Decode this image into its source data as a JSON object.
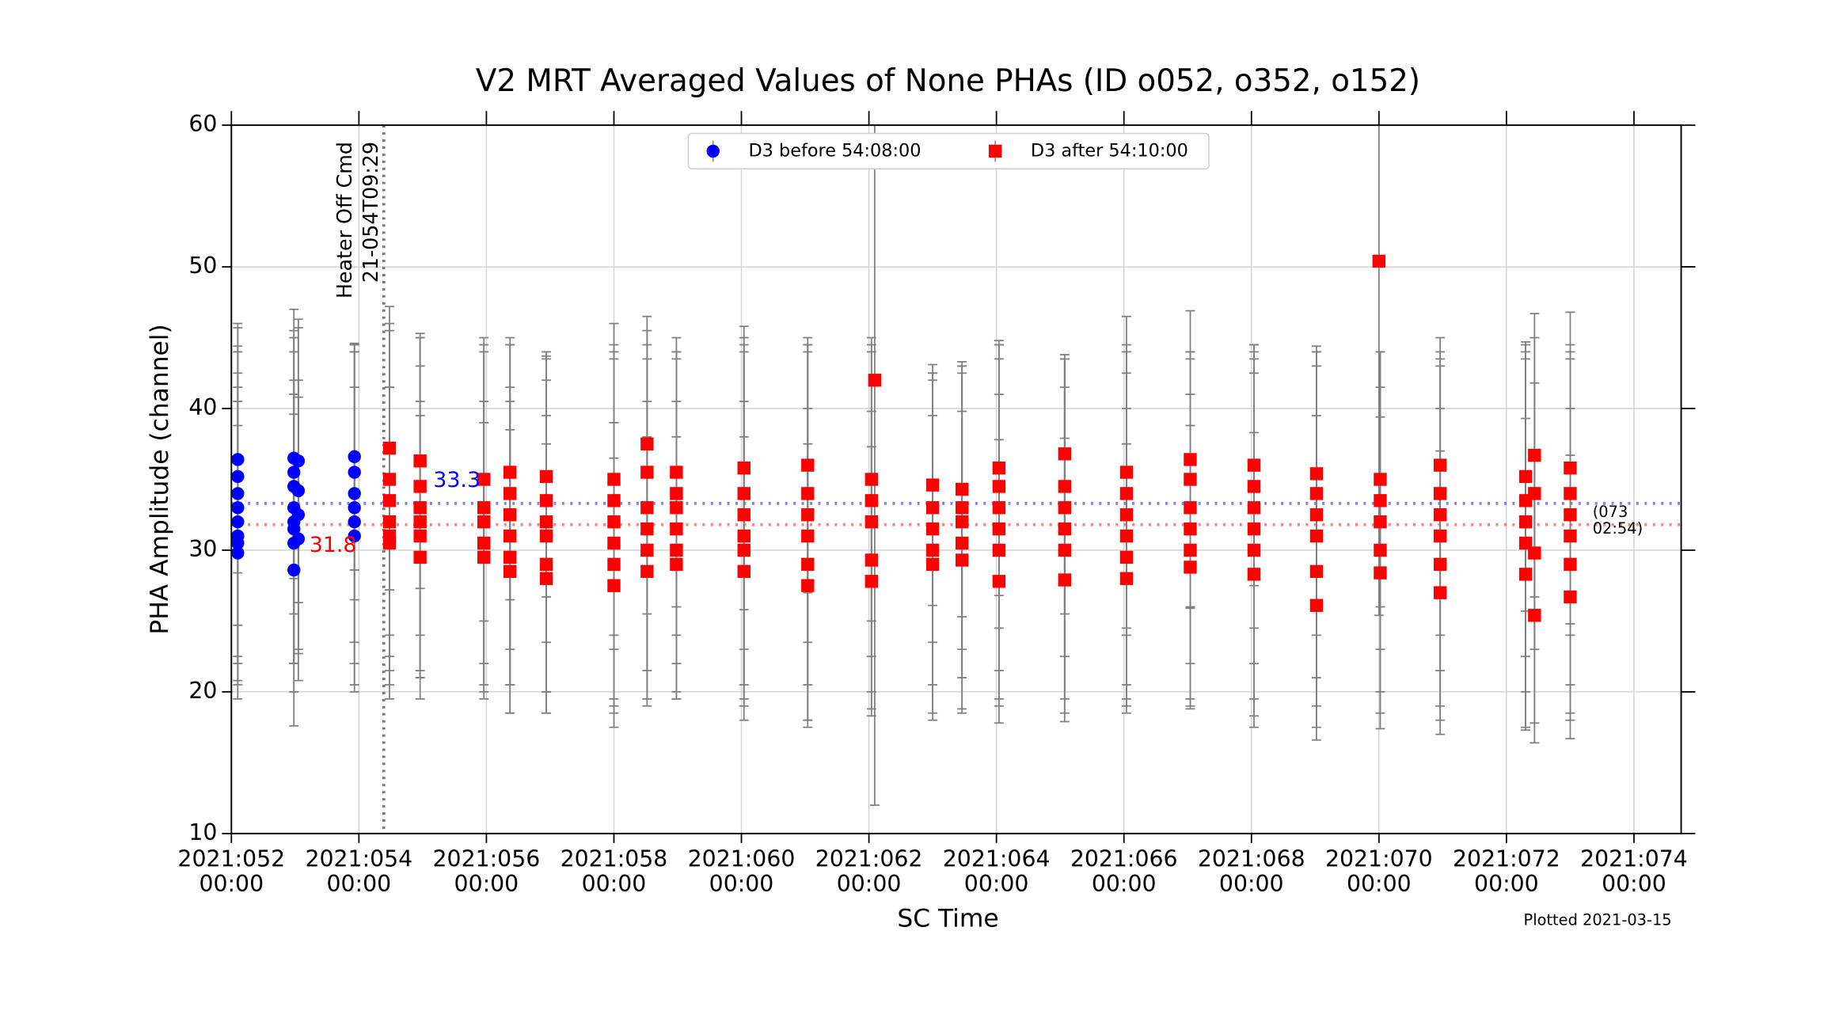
{
  "chart_data": {
    "type": "scatter",
    "title": "V2 MRT Averaged Values of None PHAs (ID o052, o352, o152)",
    "x_label": "SC Time",
    "y_label": "PHA Amplitude (channel)",
    "footnote": "Plotted 2021-03-15",
    "xlim": [
      52,
      74.74
    ],
    "ylim": [
      10,
      60
    ],
    "xticks": [
      {
        "value": 52,
        "label": "2021:052\n00:00"
      },
      {
        "value": 54,
        "label": "2021:054\n00:00"
      },
      {
        "value": 56,
        "label": "2021:056\n00:00"
      },
      {
        "value": 58,
        "label": "2021:058\n00:00"
      },
      {
        "value": 60,
        "label": "2021:060\n00:00"
      },
      {
        "value": 62,
        "label": "2021:062\n00:00"
      },
      {
        "value": 64,
        "label": "2021:064\n00:00"
      },
      {
        "value": 66,
        "label": "2021:066\n00:00"
      },
      {
        "value": 68,
        "label": "2021:068\n00:00"
      },
      {
        "value": 70,
        "label": "2021:070\n00:00"
      },
      {
        "value": 72,
        "label": "2021:072\n00:00"
      },
      {
        "value": 74,
        "label": "2021:074\n00:00"
      }
    ],
    "yticks": [
      10,
      20,
      30,
      40,
      50,
      60
    ],
    "grid": true,
    "legend": "upper center",
    "error_color": "#808080",
    "series": [
      {
        "name": "D3 before 54:08:00",
        "color": "#0000ff",
        "marker": "circle",
        "x": [
          52.1,
          52.1,
          52.1,
          52.1,
          52.1,
          52.1,
          52.1,
          52.1,
          52.98,
          52.98,
          52.98,
          52.98,
          52.98,
          52.98,
          52.98,
          52.98,
          53.05,
          53.05,
          53.05,
          53.05,
          53.93,
          53.93,
          53.93,
          53.93,
          53.93,
          53.93
        ],
        "values": [
          36.4,
          35.2,
          34,
          33,
          32,
          31,
          30.5,
          29.8,
          36.5,
          35.5,
          34.5,
          33,
          32,
          31.5,
          30.5,
          28.6,
          36.3,
          34.2,
          32.5,
          30.8,
          36.6,
          35.5,
          34,
          33,
          32,
          31
        ],
        "errors": [
          8,
          10.5,
          12,
          11,
          9.5,
          11.5,
          10,
          9,
          8.5,
          10,
          12.5,
          11,
          10,
          9.5,
          10.5,
          11,
          10,
          11.5,
          9.5,
          10,
          8,
          9,
          10.5,
          11,
          12,
          10.5
        ]
      },
      {
        "name": "D3 after 54:10:00",
        "color": "#ff0000",
        "marker": "square",
        "x": [
          54.48,
          54.48,
          54.48,
          54.48,
          54.48,
          54.48,
          54.96,
          54.96,
          54.96,
          54.96,
          54.96,
          54.96,
          55.96,
          55.96,
          55.96,
          55.96,
          55.96,
          56.37,
          56.37,
          56.37,
          56.37,
          56.37,
          56.37,
          56.94,
          56.94,
          56.94,
          56.94,
          56.94,
          56.94,
          58.0,
          58.0,
          58.0,
          58.0,
          58.0,
          58.0,
          58.52,
          58.52,
          58.52,
          58.52,
          58.52,
          58.52,
          58.98,
          58.98,
          58.98,
          58.98,
          58.98,
          58.98,
          60.04,
          60.04,
          60.04,
          60.04,
          60.04,
          60.04,
          61.04,
          61.04,
          61.04,
          61.04,
          61.04,
          61.04,
          62.04,
          62.04,
          62.04,
          62.04,
          62.04,
          62.09,
          63.0,
          63.0,
          63.0,
          63.0,
          63.0,
          63.46,
          63.46,
          63.46,
          63.46,
          63.46,
          64.04,
          64.04,
          64.04,
          64.04,
          64.04,
          64.04,
          65.07,
          65.07,
          65.07,
          65.07,
          65.07,
          65.07,
          66.04,
          66.04,
          66.04,
          66.04,
          66.04,
          66.04,
          67.04,
          67.04,
          67.04,
          67.04,
          67.04,
          67.04,
          68.04,
          68.04,
          68.04,
          68.04,
          68.04,
          68.04,
          69.02,
          69.02,
          69.02,
          69.02,
          69.02,
          69.02,
          70.0,
          70.02,
          70.02,
          70.02,
          70.02,
          70.02,
          70.96,
          70.96,
          70.96,
          70.96,
          70.96,
          70.96,
          72.3,
          72.3,
          72.3,
          72.3,
          72.3,
          72.44,
          72.44,
          72.44,
          72.44,
          73.0,
          73.0,
          73.0,
          73.0,
          73.0,
          73.0
        ],
        "values": [
          37.2,
          35,
          33.5,
          32,
          31,
          30.5,
          36.3,
          34.5,
          33,
          32,
          31,
          29.5,
          35,
          33,
          32,
          30.5,
          29.5,
          35.5,
          34,
          32.5,
          31,
          29.5,
          28.5,
          35.2,
          33.5,
          32,
          31,
          29,
          28,
          35,
          33.5,
          32,
          30.5,
          29,
          27.5,
          37.5,
          35.5,
          33,
          31.5,
          30,
          28.5,
          35.5,
          34,
          33,
          31.5,
          30,
          29,
          35.8,
          34,
          32.5,
          31,
          30,
          28.5,
          36,
          34,
          32.5,
          31,
          29,
          27.5,
          35,
          33.5,
          32,
          29.3,
          27.8,
          42,
          34.6,
          33,
          31.5,
          30,
          29,
          34.3,
          33,
          32,
          30.5,
          29.3,
          35.8,
          34.5,
          33,
          31.5,
          30,
          27.8,
          36.8,
          34.5,
          33,
          31.5,
          30,
          27.9,
          35.5,
          34,
          32.5,
          31,
          29.5,
          28,
          36.4,
          35,
          33,
          31.5,
          30,
          28.8,
          36,
          34.5,
          33,
          31.5,
          30,
          28.3,
          35.4,
          34,
          32.5,
          31,
          28.5,
          26.1,
          50.4,
          35,
          33.5,
          32,
          30,
          28.4,
          36,
          34,
          32.5,
          31,
          29,
          27,
          35.2,
          33.5,
          32,
          30.5,
          28.3,
          36.7,
          34,
          29.8,
          25.4,
          35.8,
          34,
          32.5,
          31,
          29,
          26.7
        ],
        "errors": [
          10,
          11,
          12,
          9.5,
          10.5,
          11,
          9,
          10.5,
          12,
          11,
          9.5,
          10,
          10,
          11,
          12.5,
          10,
          9.5,
          9,
          11,
          12,
          10.5,
          11,
          10,
          8.5,
          10,
          12,
          11,
          10.5,
          9.5,
          11,
          10.5,
          12.5,
          13,
          10,
          9,
          9,
          10,
          11.5,
          12,
          10.5,
          9.5,
          9.5,
          10,
          11,
          12,
          10.5,
          9,
          10,
          11,
          12,
          13,
          10.5,
          9.5,
          9,
          10.5,
          12,
          13,
          11,
          10,
          10,
          11,
          12,
          10.5,
          9.5,
          30,
          8.5,
          9.5,
          11,
          12,
          10.5,
          9,
          10,
          11,
          12,
          10.5,
          9,
          10,
          11.5,
          12,
          11,
          10,
          7,
          9,
          10.5,
          12,
          11.5,
          10,
          11,
          10,
          12,
          11.5,
          10.5,
          9.5,
          10.5,
          9,
          11,
          12,
          11,
          10,
          8.5,
          10,
          11,
          12,
          12.5,
          10,
          9,
          10,
          11.5,
          12,
          11,
          9.5,
          25,
          9,
          10.5,
          12,
          11.5,
          11,
          9,
          10,
          11,
          12,
          11,
          10,
          9.5,
          11,
          12,
          13,
          11,
          10,
          11,
          12,
          9,
          11,
          10,
          12,
          12.5,
          11,
          10
        ]
      }
    ],
    "reference_lines": [
      {
        "value": 33.3,
        "label": "33.3",
        "color": "#0000ff"
      },
      {
        "value": 31.8,
        "label": "31.8",
        "color": "#ff0000"
      }
    ],
    "annotations": [
      {
        "x": 54.39,
        "text": [
          "Heater Off Cmd",
          "21-054T09:29"
        ]
      },
      {
        "text": "(073\n02:54)"
      }
    ]
  }
}
